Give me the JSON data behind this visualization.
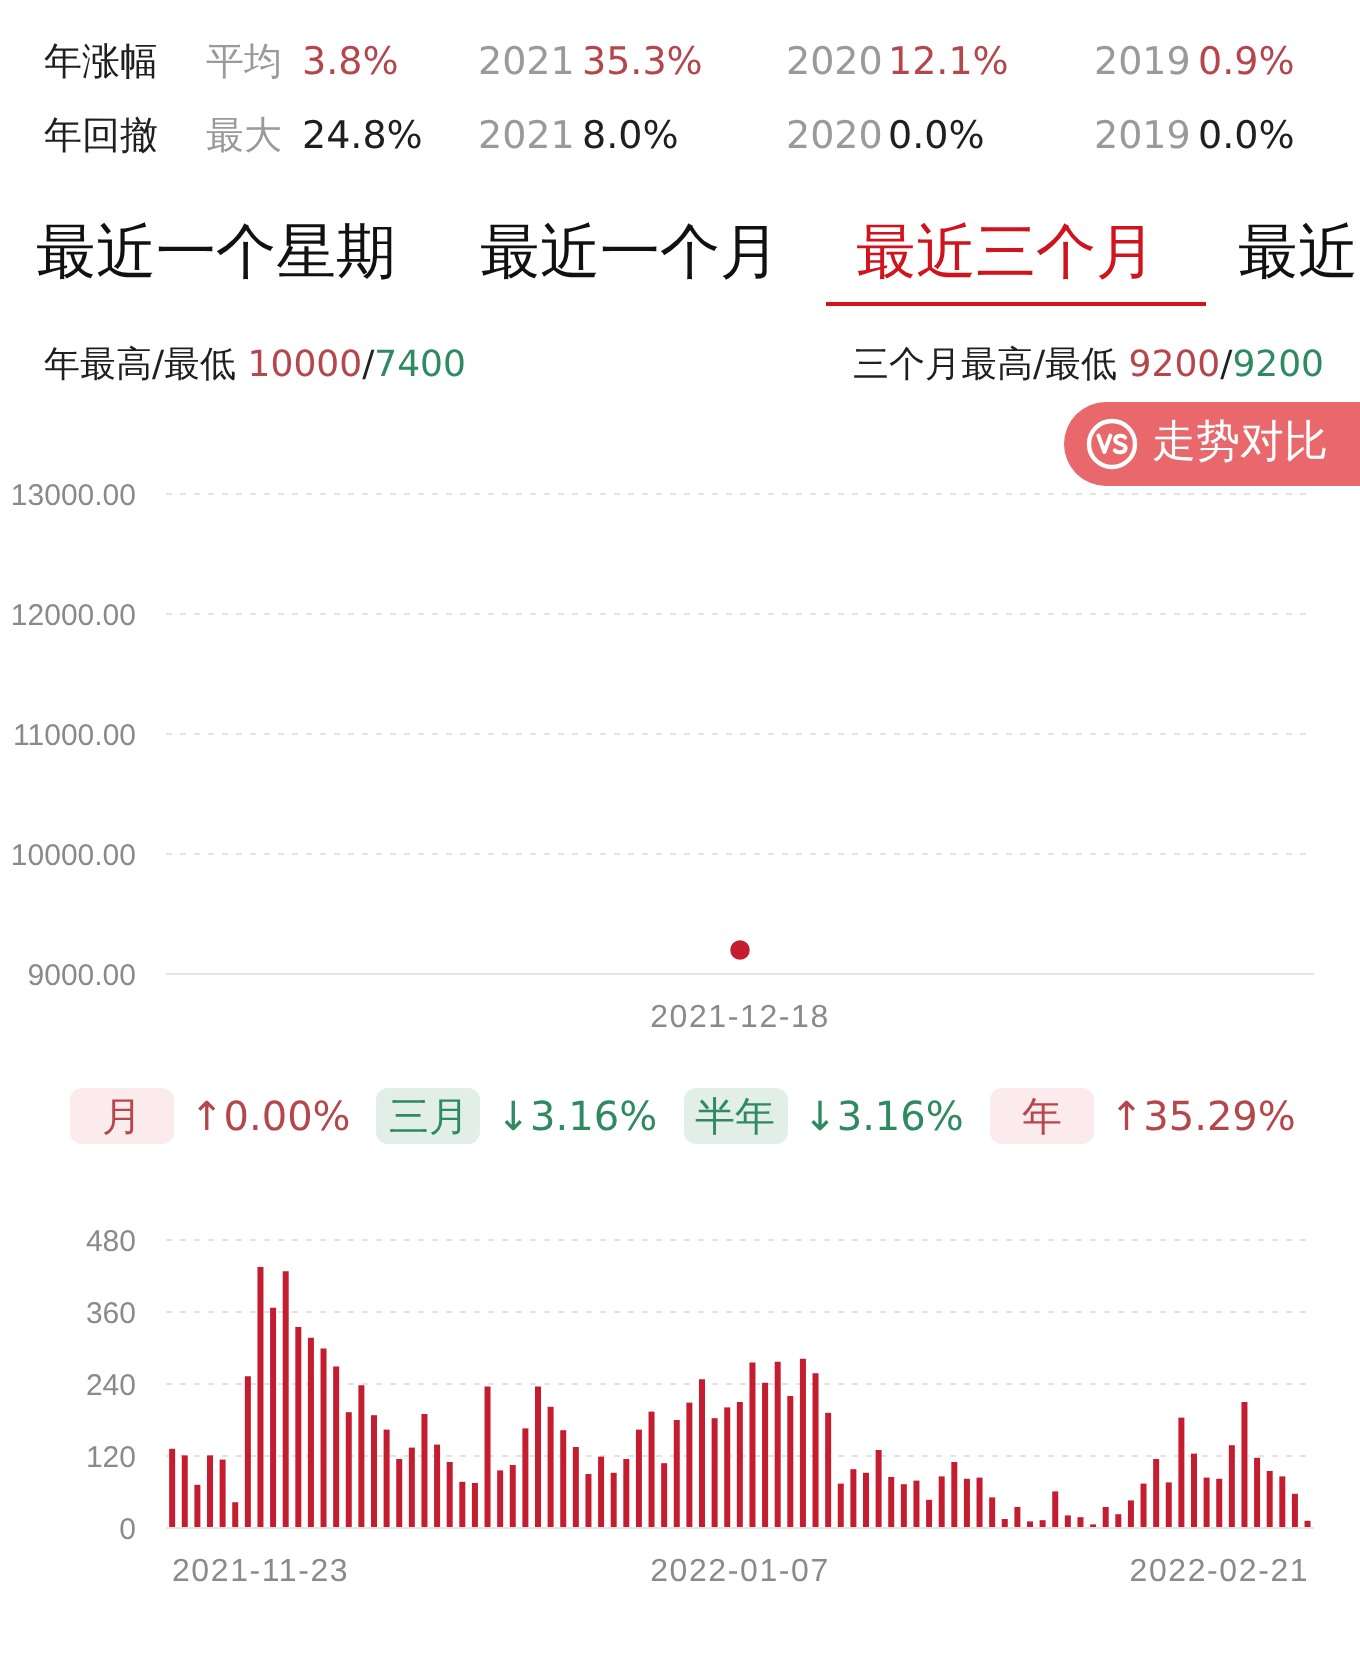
{
  "chart_data": [
    {
      "type": "other",
      "annotations": [
        "年涨幅",
        "平均",
        "3.8%",
        "2021",
        "35.3%",
        "2020",
        "12.1%",
        "2019",
        "0.9%",
        "年回撤",
        "最大",
        "24.8%",
        "2021",
        "8.0%",
        "2020",
        "0.0%",
        "2019",
        "0.0%"
      ]
    },
    {
      "type": "scatter",
      "annotations": [
        "最近一个星期",
        "最近一个月",
        "最近三个月",
        "最近",
        "年最高/最低 10000/7400",
        "三个月最高/最低 9200/9200",
        "走势对比",
        "月",
        "↑0.00%",
        "三月",
        "↓3.16%",
        "半年",
        "↓3.16%",
        "年",
        "↑35.29%"
      ],
      "categories": [
        "2021-12-18"
      ],
      "values": [
        9200
      ],
      "color": "#c41d30",
      "ylim": [
        9000,
        13000
      ],
      "yticks": [
        {
          "value": 9000,
          "label": "9000.00"
        },
        {
          "value": 10000,
          "label": "10000.00"
        },
        {
          "value": 11000,
          "label": "11000.00"
        },
        {
          "value": 12000,
          "label": "12000.00"
        },
        {
          "value": 13000,
          "label": "13000.00"
        }
      ],
      "grid": "y",
      "marker": "circle"
    },
    {
      "type": "bar",
      "categories": [
        null,
        null,
        null,
        null,
        null,
        null,
        null,
        "2021-11-23",
        null,
        null,
        null,
        null,
        null,
        null,
        null,
        null,
        null,
        null,
        null,
        null,
        null,
        null,
        null,
        null,
        null,
        null,
        null,
        null,
        null,
        null,
        null,
        null,
        null,
        null,
        null,
        null,
        null,
        null,
        null,
        null,
        null,
        null,
        null,
        null,
        null,
        "2022-01-07",
        null,
        null,
        null,
        null,
        null,
        null,
        null,
        null,
        null,
        null,
        null,
        null,
        null,
        null,
        null,
        null,
        null,
        null,
        null,
        null,
        null,
        null,
        null,
        null,
        null,
        null,
        null,
        null,
        null,
        null,
        null,
        null,
        null,
        null,
        null,
        null,
        null,
        "2022-02-21",
        null,
        null,
        null,
        null,
        null,
        null,
        null
      ],
      "values": [
        132,
        121,
        72,
        121,
        114,
        43,
        253,
        435,
        367,
        428,
        335,
        317,
        299,
        269,
        193,
        238,
        188,
        164,
        115,
        134,
        190,
        139,
        110,
        77,
        75,
        236,
        96,
        105,
        166,
        236,
        202,
        163,
        135,
        90,
        119,
        92,
        115,
        164,
        194,
        108,
        180,
        209,
        248,
        183,
        201,
        210,
        276,
        242,
        277,
        220,
        282,
        258,
        192,
        74,
        98,
        92,
        130,
        85,
        73,
        79,
        47,
        86,
        110,
        82,
        84,
        51,
        15,
        35,
        11,
        13,
        61,
        21,
        18,
        6,
        35,
        23,
        46,
        74,
        115,
        76,
        184,
        124,
        84,
        82,
        138,
        210,
        117,
        95,
        86,
        57,
        12
      ],
      "color": "#c41d30",
      "ylim": [
        0,
        480
      ],
      "yticks": [
        0,
        120,
        240,
        360,
        480
      ],
      "grid": "y"
    }
  ]
}
